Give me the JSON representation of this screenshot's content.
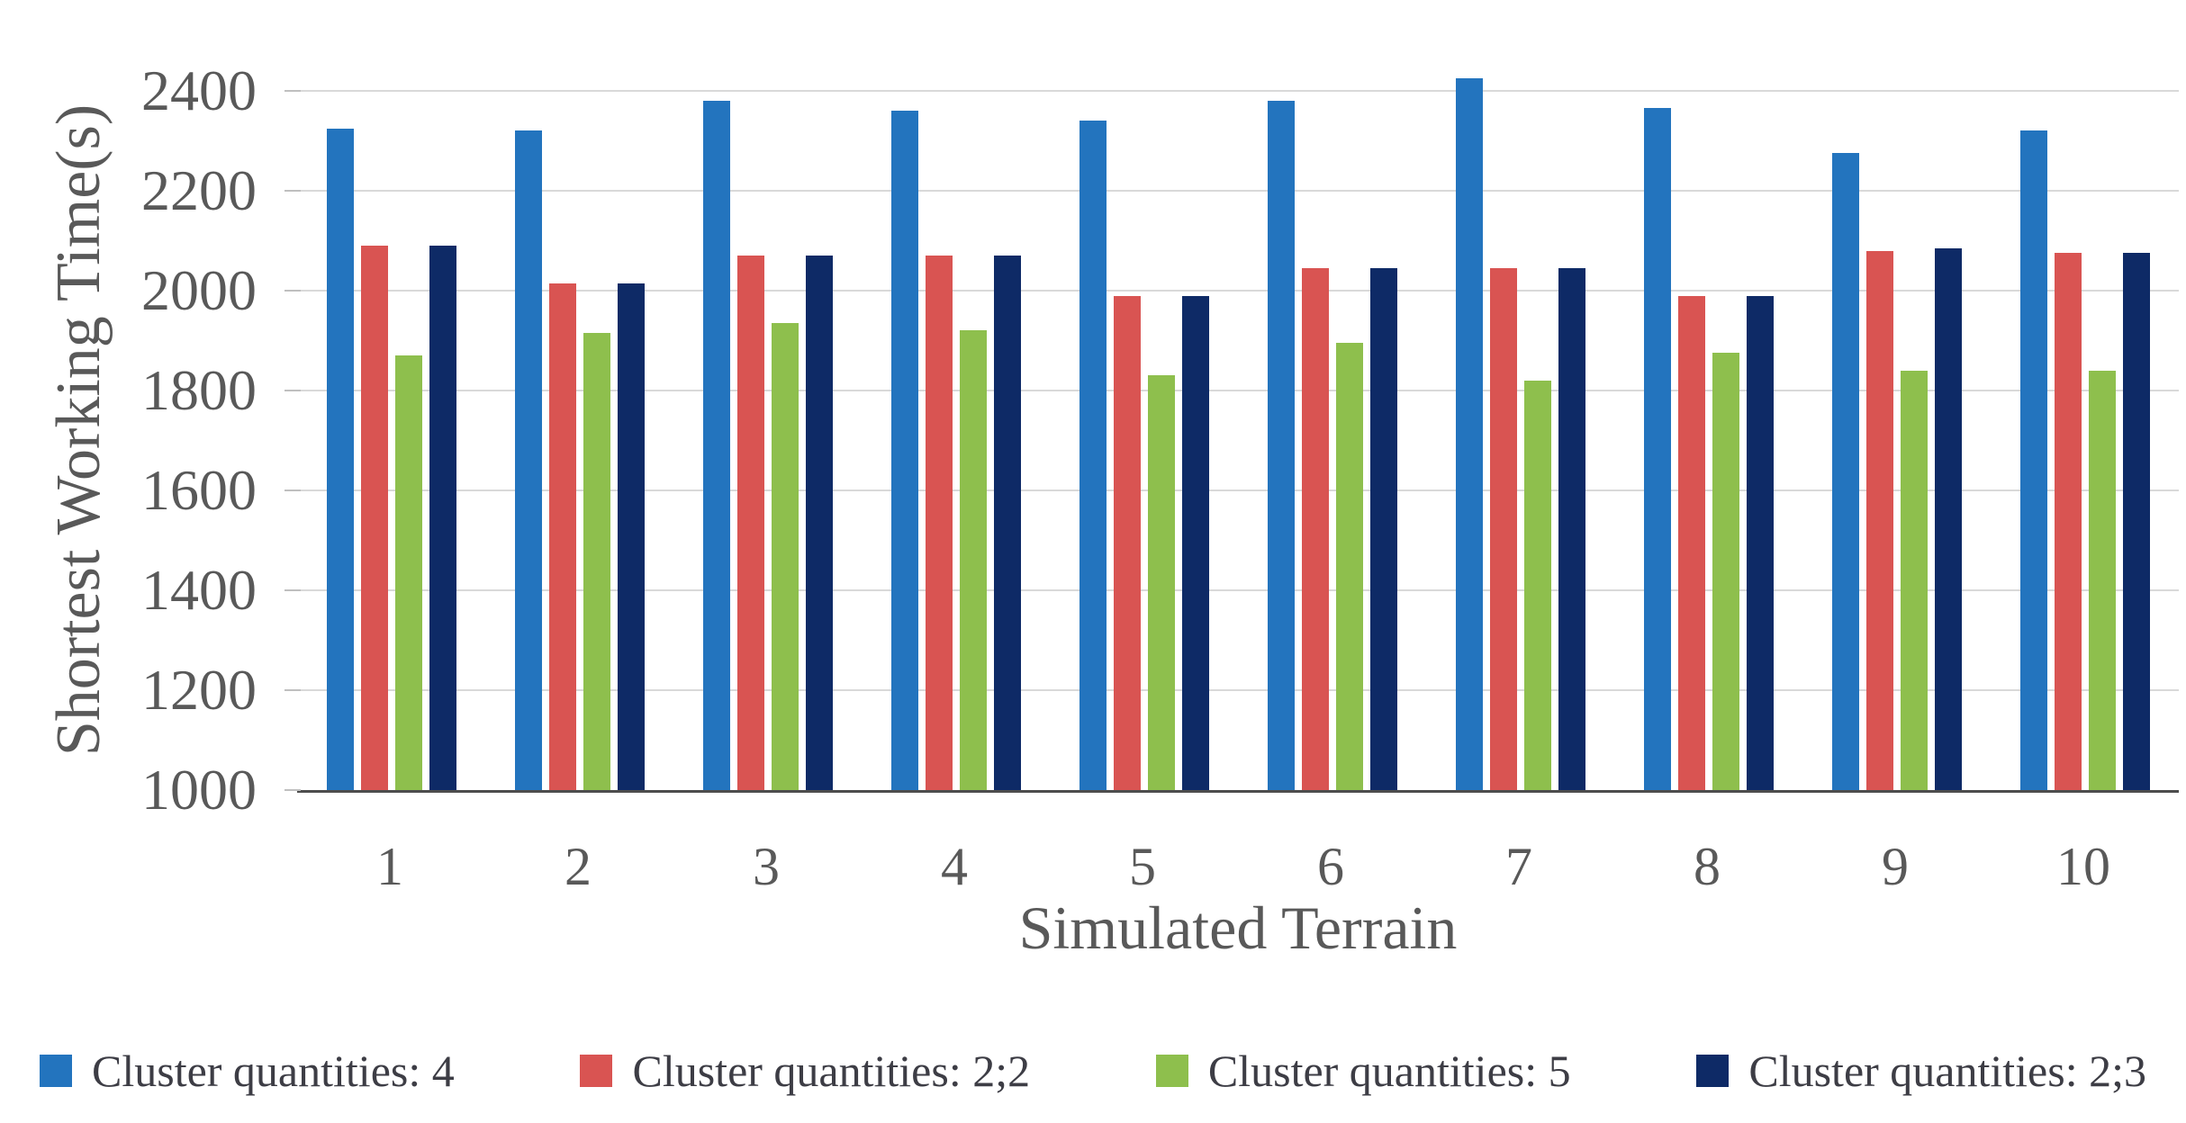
{
  "figure": {
    "y_axis_title": "Shortest Working Time(s)",
    "x_axis_title": "Simulated Terrain"
  },
  "chart_data": {
    "type": "bar",
    "title": "",
    "xlabel": "Simulated Terrain",
    "ylabel": "Shortest Working Time(s)",
    "categories": [
      "1",
      "2",
      "3",
      "4",
      "5",
      "6",
      "7",
      "8",
      "9",
      "10"
    ],
    "series": [
      {
        "name": "Cluster quantities: 4",
        "color": "#2374be",
        "values": [
          2325,
          2320,
          2380,
          2360,
          2340,
          2380,
          2425,
          2365,
          2275,
          2320
        ]
      },
      {
        "name": "Cluster quantities: 2;2",
        "color": "#d95452",
        "values": [
          2090,
          2015,
          2070,
          2070,
          1990,
          2045,
          2045,
          1990,
          2080,
          2075
        ]
      },
      {
        "name": "Cluster quantities: 5",
        "color": "#8ebf4d",
        "values": [
          1870,
          1915,
          1935,
          1920,
          1830,
          1895,
          1820,
          1875,
          1840,
          1840
        ]
      },
      {
        "name": "Cluster quantities: 2;3",
        "color": "#0e2a66",
        "values": [
          2090,
          2015,
          2070,
          2070,
          1990,
          2045,
          2045,
          1990,
          2085,
          2075
        ]
      }
    ],
    "ylim": [
      1000,
      2400
    ],
    "ytick_step": 200,
    "yticks": [
      1000,
      1200,
      1400,
      1600,
      1800,
      2000,
      2200,
      2400
    ],
    "grid": true,
    "legend_position": "bottom",
    "colors": {
      "gridline": "#d9d9d9",
      "axis_line": "#4d4d4d",
      "tick_label": "#595959",
      "axis_title": "#595959",
      "legend_text": "#3d3d45"
    }
  }
}
